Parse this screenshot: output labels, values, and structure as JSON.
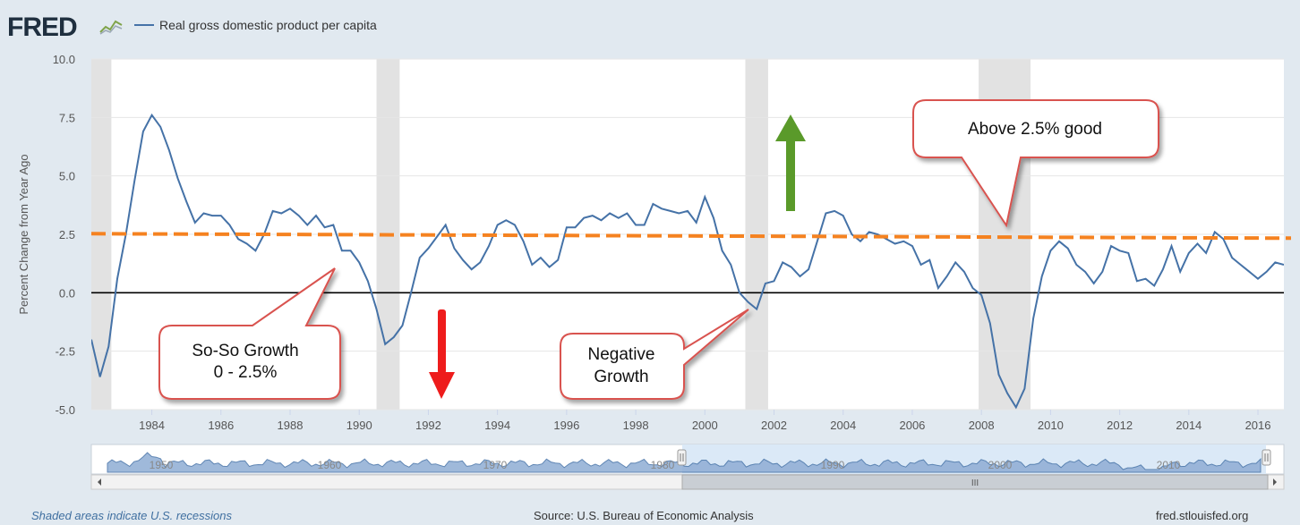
{
  "header": {
    "logo_text": "FRED",
    "logo_icon": "chart-line-icon",
    "legend_label": "Real gross domestic product per capita",
    "legend_color": "#4572a7"
  },
  "footer": {
    "recession_note": "Shaded areas indicate U.S. recessions",
    "source": "Source: U.S. Bureau of Economic Analysis",
    "site": "fred.stlouisfed.org"
  },
  "navigator": {
    "labels": [
      "1950",
      "1960",
      "1970",
      "1980",
      "1990",
      "2000",
      "2010"
    ],
    "scrollbar_grip": "III"
  },
  "annotations": {
    "above": "Above 2.5% good",
    "soso_line1": "So-So Growth",
    "soso_line2": "0 - 2.5%",
    "neg_line1": "Negative",
    "neg_line2": "Growth",
    "threshold_value": 2.45,
    "threshold_color": "#f58220",
    "up_arrow_color": "#5a9a2a",
    "down_arrow_color": "#ee1c1c",
    "callout_border": "#d9534f"
  },
  "chart_data": {
    "type": "line",
    "title": "",
    "xlabel": "",
    "ylabel": "Percent Change from Year Ago",
    "xlim": [
      1982.25,
      2016.75
    ],
    "ylim": [
      -5.0,
      10.0
    ],
    "y_ticks": [
      "-5.0",
      "-2.5",
      "0.0",
      "2.5",
      "5.0",
      "7.5",
      "10.0"
    ],
    "x_ticks": [
      "1984",
      "1986",
      "1988",
      "1990",
      "1992",
      "1994",
      "1996",
      "1998",
      "2000",
      "2002",
      "2004",
      "2006",
      "2008",
      "2010",
      "2012",
      "2014",
      "2016"
    ],
    "recessions": [
      [
        1982.25,
        1982.83
      ],
      [
        1990.5,
        1991.17
      ],
      [
        2001.17,
        2001.83
      ],
      [
        2007.92,
        2009.42
      ]
    ],
    "series": [
      {
        "name": "Real gross domestic product per capita",
        "x": [
          1982.25,
          1982.5,
          1982.75,
          1983.0,
          1983.25,
          1983.5,
          1983.75,
          1984.0,
          1984.25,
          1984.5,
          1984.75,
          1985.0,
          1985.25,
          1985.5,
          1985.75,
          1986.0,
          1986.25,
          1986.5,
          1986.75,
          1987.0,
          1987.25,
          1987.5,
          1987.75,
          1988.0,
          1988.25,
          1988.5,
          1988.75,
          1989.0,
          1989.25,
          1989.5,
          1989.75,
          1990.0,
          1990.25,
          1990.5,
          1990.75,
          1991.0,
          1991.25,
          1991.5,
          1991.75,
          1992.0,
          1992.25,
          1992.5,
          1992.75,
          1993.0,
          1993.25,
          1993.5,
          1993.75,
          1994.0,
          1994.25,
          1994.5,
          1994.75,
          1995.0,
          1995.25,
          1995.5,
          1995.75,
          1996.0,
          1996.25,
          1996.5,
          1996.75,
          1997.0,
          1997.25,
          1997.5,
          1997.75,
          1998.0,
          1998.25,
          1998.5,
          1998.75,
          1999.0,
          1999.25,
          1999.5,
          1999.75,
          2000.0,
          2000.25,
          2000.5,
          2000.75,
          2001.0,
          2001.25,
          2001.5,
          2001.75,
          2002.0,
          2002.25,
          2002.5,
          2002.75,
          2003.0,
          2003.25,
          2003.5,
          2003.75,
          2004.0,
          2004.25,
          2004.5,
          2004.75,
          2005.0,
          2005.25,
          2005.5,
          2005.75,
          2006.0,
          2006.25,
          2006.5,
          2006.75,
          2007.0,
          2007.25,
          2007.5,
          2007.75,
          2008.0,
          2008.25,
          2008.5,
          2008.75,
          2009.0,
          2009.25,
          2009.5,
          2009.75,
          2010.0,
          2010.25,
          2010.5,
          2010.75,
          2011.0,
          2011.25,
          2011.5,
          2011.75,
          2012.0,
          2012.25,
          2012.5,
          2012.75,
          2013.0,
          2013.25,
          2013.5,
          2013.75,
          2014.0,
          2014.25,
          2014.5,
          2014.75,
          2015.0,
          2015.25,
          2015.5,
          2015.75,
          2016.0,
          2016.25,
          2016.5,
          2016.75
        ],
        "values": [
          -2.0,
          -3.6,
          -2.3,
          0.6,
          2.5,
          4.8,
          6.9,
          7.6,
          7.1,
          6.1,
          4.9,
          3.9,
          3.0,
          3.4,
          3.3,
          3.3,
          2.9,
          2.3,
          2.1,
          1.8,
          2.5,
          3.5,
          3.4,
          3.6,
          3.3,
          2.9,
          3.3,
          2.8,
          2.9,
          1.8,
          1.8,
          1.3,
          0.5,
          -0.7,
          -2.2,
          -1.9,
          -1.4,
          0.0,
          1.5,
          1.9,
          2.4,
          2.9,
          1.9,
          1.4,
          1.0,
          1.3,
          2.0,
          2.9,
          3.1,
          2.9,
          2.2,
          1.2,
          1.5,
          1.1,
          1.4,
          2.8,
          2.8,
          3.2,
          3.3,
          3.1,
          3.4,
          3.2,
          3.4,
          2.9,
          2.9,
          3.8,
          3.6,
          3.5,
          3.4,
          3.5,
          3.0,
          4.1,
          3.2,
          1.8,
          1.2,
          0.0,
          -0.4,
          -0.7,
          0.4,
          0.5,
          1.3,
          1.1,
          0.7,
          1.0,
          2.2,
          3.4,
          3.5,
          3.3,
          2.5,
          2.2,
          2.6,
          2.5,
          2.3,
          2.1,
          2.2,
          2.0,
          1.2,
          1.4,
          0.2,
          0.7,
          1.3,
          0.9,
          0.2,
          -0.1,
          -1.3,
          -3.5,
          -4.3,
          -4.9,
          -4.1,
          -1.1,
          0.7,
          1.8,
          2.2,
          1.9,
          1.2,
          0.9,
          0.4,
          0.9,
          2.0,
          1.8,
          1.7,
          0.5,
          0.6,
          0.3,
          1.0,
          2.0,
          0.9,
          1.7,
          2.1,
          1.7,
          2.6,
          2.3,
          1.5,
          1.2,
          0.9,
          0.6,
          0.9,
          1.3,
          1.2
        ]
      }
    ]
  }
}
